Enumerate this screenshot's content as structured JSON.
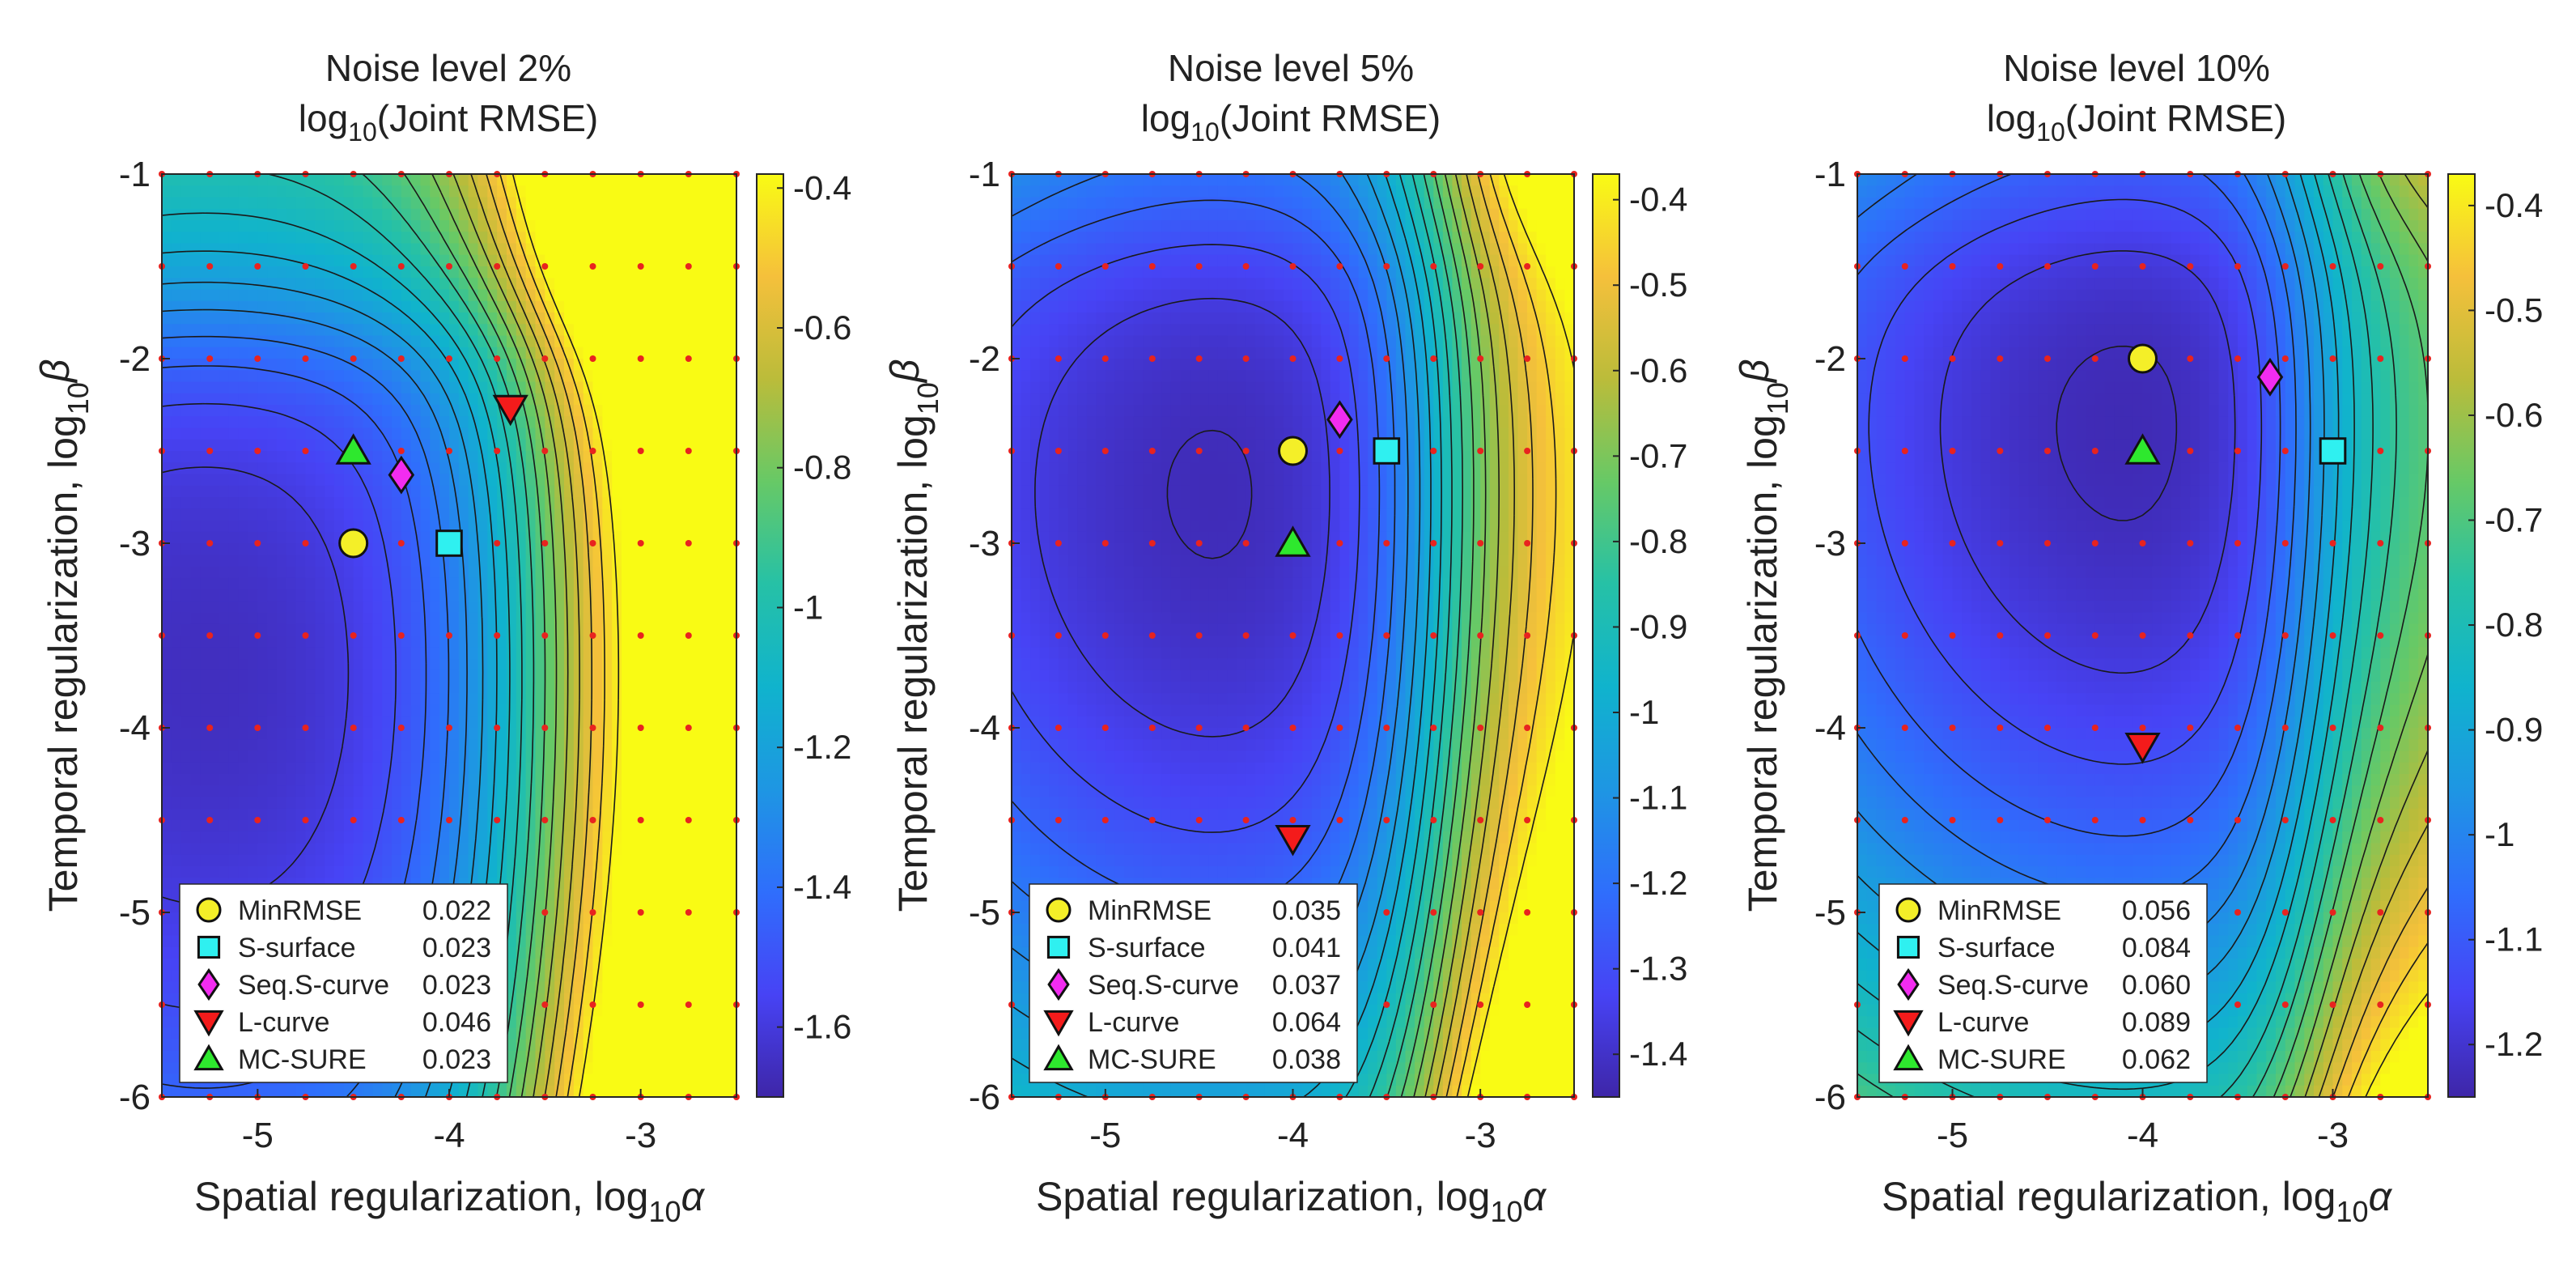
{
  "chart_data": [
    {
      "type": "heatmap",
      "title_line1": "Noise level 2%",
      "title_line2": "log10(Joint RMSE)",
      "xlabel": "Spatial regularization, log10α",
      "ylabel": "Temporal regularization, log10β",
      "xlim": [
        -5.5,
        -2.5
      ],
      "ylim": [
        -6,
        -1
      ],
      "xticks": [
        "-5",
        "-4",
        "-3"
      ],
      "yticks": [
        "-1",
        "-2",
        "-3",
        "-4",
        "-5",
        "-6"
      ],
      "colorbar": {
        "range": [
          -1.7,
          -0.38
        ],
        "ticks": [
          "-0.4",
          "-0.6",
          "-0.8",
          "-1",
          "-1.2",
          "-1.4",
          "-1.6"
        ],
        "tick_values": [
          -0.4,
          -0.6,
          -0.8,
          -1.0,
          -1.2,
          -1.4,
          -1.6
        ]
      },
      "field": {
        "base": -1.66,
        "center": [
          -5.2,
          -3.7
        ],
        "bowl": 0.07,
        "k": 1.0,
        "wall_x": -3.5,
        "wall_amp": 1.2,
        "wall_w": 0.6,
        "y_top": -1.8,
        "y_amp": 0.35
      },
      "markers": [
        {
          "name": "MinRMSE",
          "shape": "circle",
          "color": "#f4ef28",
          "x": -4.5,
          "y": -3.0,
          "value": "0.022"
        },
        {
          "name": "S-surface",
          "shape": "square",
          "color": "#2ff0f0",
          "x": -4.0,
          "y": -3.0,
          "value": "0.023"
        },
        {
          "name": "Seq.S-curve",
          "shape": "diamond",
          "color": "#f22cf0",
          "x": -4.25,
          "y": -2.63,
          "value": "0.023"
        },
        {
          "name": "L-curve",
          "shape": "tri-down",
          "color": "#f41b1b",
          "x": -3.68,
          "y": -2.27,
          "value": "0.046"
        },
        {
          "name": "MC-SURE",
          "shape": "tri-up",
          "color": "#2ee82e",
          "x": -4.5,
          "y": -2.5,
          "value": "0.023"
        }
      ]
    },
    {
      "type": "heatmap",
      "title_line1": "Noise level 5%",
      "title_line2": "log10(Joint RMSE)",
      "xlabel": "Spatial regularization, log10α",
      "ylabel": "Temporal regularization, log10β",
      "xlim": [
        -5.5,
        -2.5
      ],
      "ylim": [
        -6,
        -1
      ],
      "xticks": [
        "-5",
        "-4",
        "-3"
      ],
      "yticks": [
        "-1",
        "-2",
        "-3",
        "-4",
        "-5",
        "-6"
      ],
      "colorbar": {
        "range": [
          -1.45,
          -0.37
        ],
        "ticks": [
          "-0.4",
          "-0.5",
          "-0.6",
          "-0.7",
          "-0.8",
          "-0.9",
          "-1",
          "-1.1",
          "-1.2",
          "-1.3",
          "-1.4"
        ],
        "tick_values": [
          -0.4,
          -0.5,
          -0.6,
          -0.7,
          -0.8,
          -0.9,
          -1.0,
          -1.1,
          -1.2,
          -1.3,
          -1.4
        ]
      },
      "field": {
        "base": -1.43,
        "center": [
          -4.3,
          -2.7
        ],
        "bowl": 0.06,
        "k": 0.85,
        "wall_x": -3.2,
        "wall_amp": 1.0,
        "wall_w": 0.45,
        "y_top": -1.3,
        "y_amp": 0.15
      },
      "markers": [
        {
          "name": "MinRMSE",
          "shape": "circle",
          "color": "#f4ef28",
          "x": -4.0,
          "y": -2.5,
          "value": "0.035"
        },
        {
          "name": "S-surface",
          "shape": "square",
          "color": "#2ff0f0",
          "x": -3.5,
          "y": -2.5,
          "value": "0.041"
        },
        {
          "name": "Seq.S-curve",
          "shape": "diamond",
          "color": "#f22cf0",
          "x": -3.75,
          "y": -2.33,
          "value": "0.037"
        },
        {
          "name": "L-curve",
          "shape": "tri-down",
          "color": "#f41b1b",
          "x": -4.0,
          "y": -4.6,
          "value": "0.064"
        },
        {
          "name": "MC-SURE",
          "shape": "tri-up",
          "color": "#2ee82e",
          "x": -4.0,
          "y": -3.0,
          "value": "0.038"
        }
      ]
    },
    {
      "type": "heatmap",
      "title_line1": "Noise level 10%",
      "title_line2": "log10(Joint RMSE)",
      "xlabel": "Spatial regularization, log10α",
      "ylabel": "Temporal regularization, log10β",
      "xlim": [
        -5.5,
        -2.5
      ],
      "ylim": [
        -6,
        -1
      ],
      "xticks": [
        "-5",
        "-4",
        "-3"
      ],
      "yticks": [
        "-1",
        "-2",
        "-3",
        "-4",
        "-5",
        "-6"
      ],
      "colorbar": {
        "range": [
          -1.25,
          -0.37
        ],
        "ticks": [
          "-0.4",
          "-0.5",
          "-0.6",
          "-0.7",
          "-0.8",
          "-0.9",
          "-1",
          "-1.1",
          "-1.2"
        ],
        "tick_values": [
          -0.4,
          -0.5,
          -0.6,
          -0.7,
          -0.8,
          -0.9,
          -1.0,
          -1.1,
          -1.2
        ]
      },
      "field": {
        "base": -1.24,
        "center": [
          -3.95,
          -2.3
        ],
        "bowl": 0.05,
        "k": 0.55,
        "wall_x": -3.1,
        "wall_amp": 0.85,
        "wall_w": 0.4,
        "y_top": -1.2,
        "y_amp": 0.12
      },
      "markers": [
        {
          "name": "MinRMSE",
          "shape": "circle",
          "color": "#f4ef28",
          "x": -4.0,
          "y": -2.0,
          "value": "0.056"
        },
        {
          "name": "S-surface",
          "shape": "square",
          "color": "#2ff0f0",
          "x": -3.0,
          "y": -2.5,
          "value": "0.084"
        },
        {
          "name": "Seq.S-curve",
          "shape": "diamond",
          "color": "#f22cf0",
          "x": -3.33,
          "y": -2.1,
          "value": "0.060"
        },
        {
          "name": "L-curve",
          "shape": "tri-down",
          "color": "#f41b1b",
          "x": -4.0,
          "y": -4.1,
          "value": "0.089"
        },
        {
          "name": "MC-SURE",
          "shape": "tri-up",
          "color": "#2ee82e",
          "x": -4.0,
          "y": -2.5,
          "value": "0.062"
        }
      ]
    }
  ],
  "grid_points": {
    "x_start": -5.5,
    "x_end": -2.5,
    "x_step": 0.25,
    "y_start": -6,
    "y_end": -1,
    "y_step": 0.5,
    "color": "#e8231f"
  },
  "colormap": [
    "#3e26a8",
    "#4743f5",
    "#2f6efc",
    "#1e96e3",
    "#10b3cd",
    "#26c1a6",
    "#67c966",
    "#bbbc3a",
    "#f5c03b",
    "#f9fb14"
  ]
}
